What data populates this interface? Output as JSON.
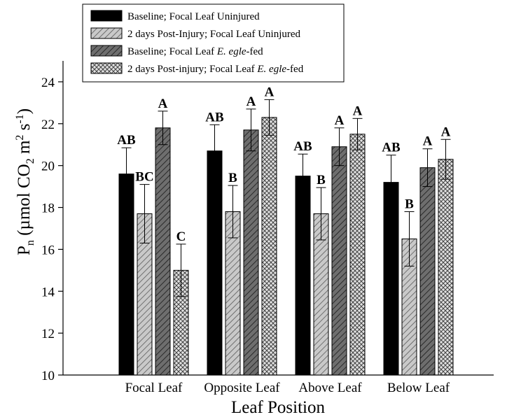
{
  "chart_data": {
    "type": "bar",
    "title": "",
    "xlabel": "Leaf Position",
    "ylabel_parts": {
      "main": "P",
      "main_sub": "n",
      "open": " (µmol CO",
      "co2_sub": "2",
      "m": " m",
      "m_sup": "2",
      "s": " s",
      "s_sup": "-1",
      "close": ")"
    },
    "ylim": [
      10,
      25
    ],
    "yticks": [
      10,
      12,
      14,
      16,
      18,
      20,
      22,
      24
    ],
    "categories": [
      "Focal Leaf",
      "Opposite Leaf",
      "Above Leaf",
      "Below Leaf"
    ],
    "legend_position": "top-left",
    "grid": false,
    "series": [
      {
        "name": "Baseline; Focal Leaf Uninjured",
        "legend_parts": [
          {
            "t": "Baseline; Focal Leaf Uninjured",
            "i": false
          }
        ],
        "pattern": "solid",
        "color": "#000000",
        "values": [
          19.6,
          20.7,
          19.5,
          19.2
        ],
        "errors": [
          1.25,
          1.25,
          1.05,
          1.3
        ],
        "sig": [
          "AB",
          "AB",
          "AB",
          "AB"
        ]
      },
      {
        "name": "2 days Post-Injury; Focal Leaf Uninjured",
        "legend_parts": [
          {
            "t": "2 days Post-Injury; Focal Leaf Uninjured",
            "i": false
          }
        ],
        "pattern": "hatch-light",
        "color": "#b8b8b8",
        "values": [
          17.7,
          17.8,
          17.7,
          16.5
        ],
        "errors": [
          1.4,
          1.25,
          1.25,
          1.3
        ],
        "sig": [
          "BC",
          "B",
          "B",
          "B"
        ]
      },
      {
        "name": "Baseline; Focal Leaf E. egle-fed",
        "legend_parts": [
          {
            "t": "Baseline; Focal Leaf ",
            "i": false
          },
          {
            "t": "E. egle",
            "i": true
          },
          {
            "t": "-fed",
            "i": false
          }
        ],
        "pattern": "hatch-dark",
        "color": "#555555",
        "values": [
          21.8,
          21.7,
          20.9,
          19.9
        ],
        "errors": [
          0.8,
          1.0,
          0.9,
          0.9
        ],
        "sig": [
          "A",
          "A",
          "A",
          "A"
        ]
      },
      {
        "name": "2 days Post-injury; Focal Leaf E. egle-fed",
        "legend_parts": [
          {
            "t": "2 days Post-injury; Focal Leaf ",
            "i": false
          },
          {
            "t": "E. egle",
            "i": true
          },
          {
            "t": "-fed",
            "i": false
          }
        ],
        "pattern": "crosshatch",
        "color": "#cfcfcf",
        "values": [
          15.0,
          22.3,
          21.5,
          20.3
        ],
        "errors": [
          1.25,
          0.85,
          0.75,
          0.95
        ],
        "sig": [
          "C",
          "A",
          "A",
          "A"
        ]
      }
    ]
  }
}
